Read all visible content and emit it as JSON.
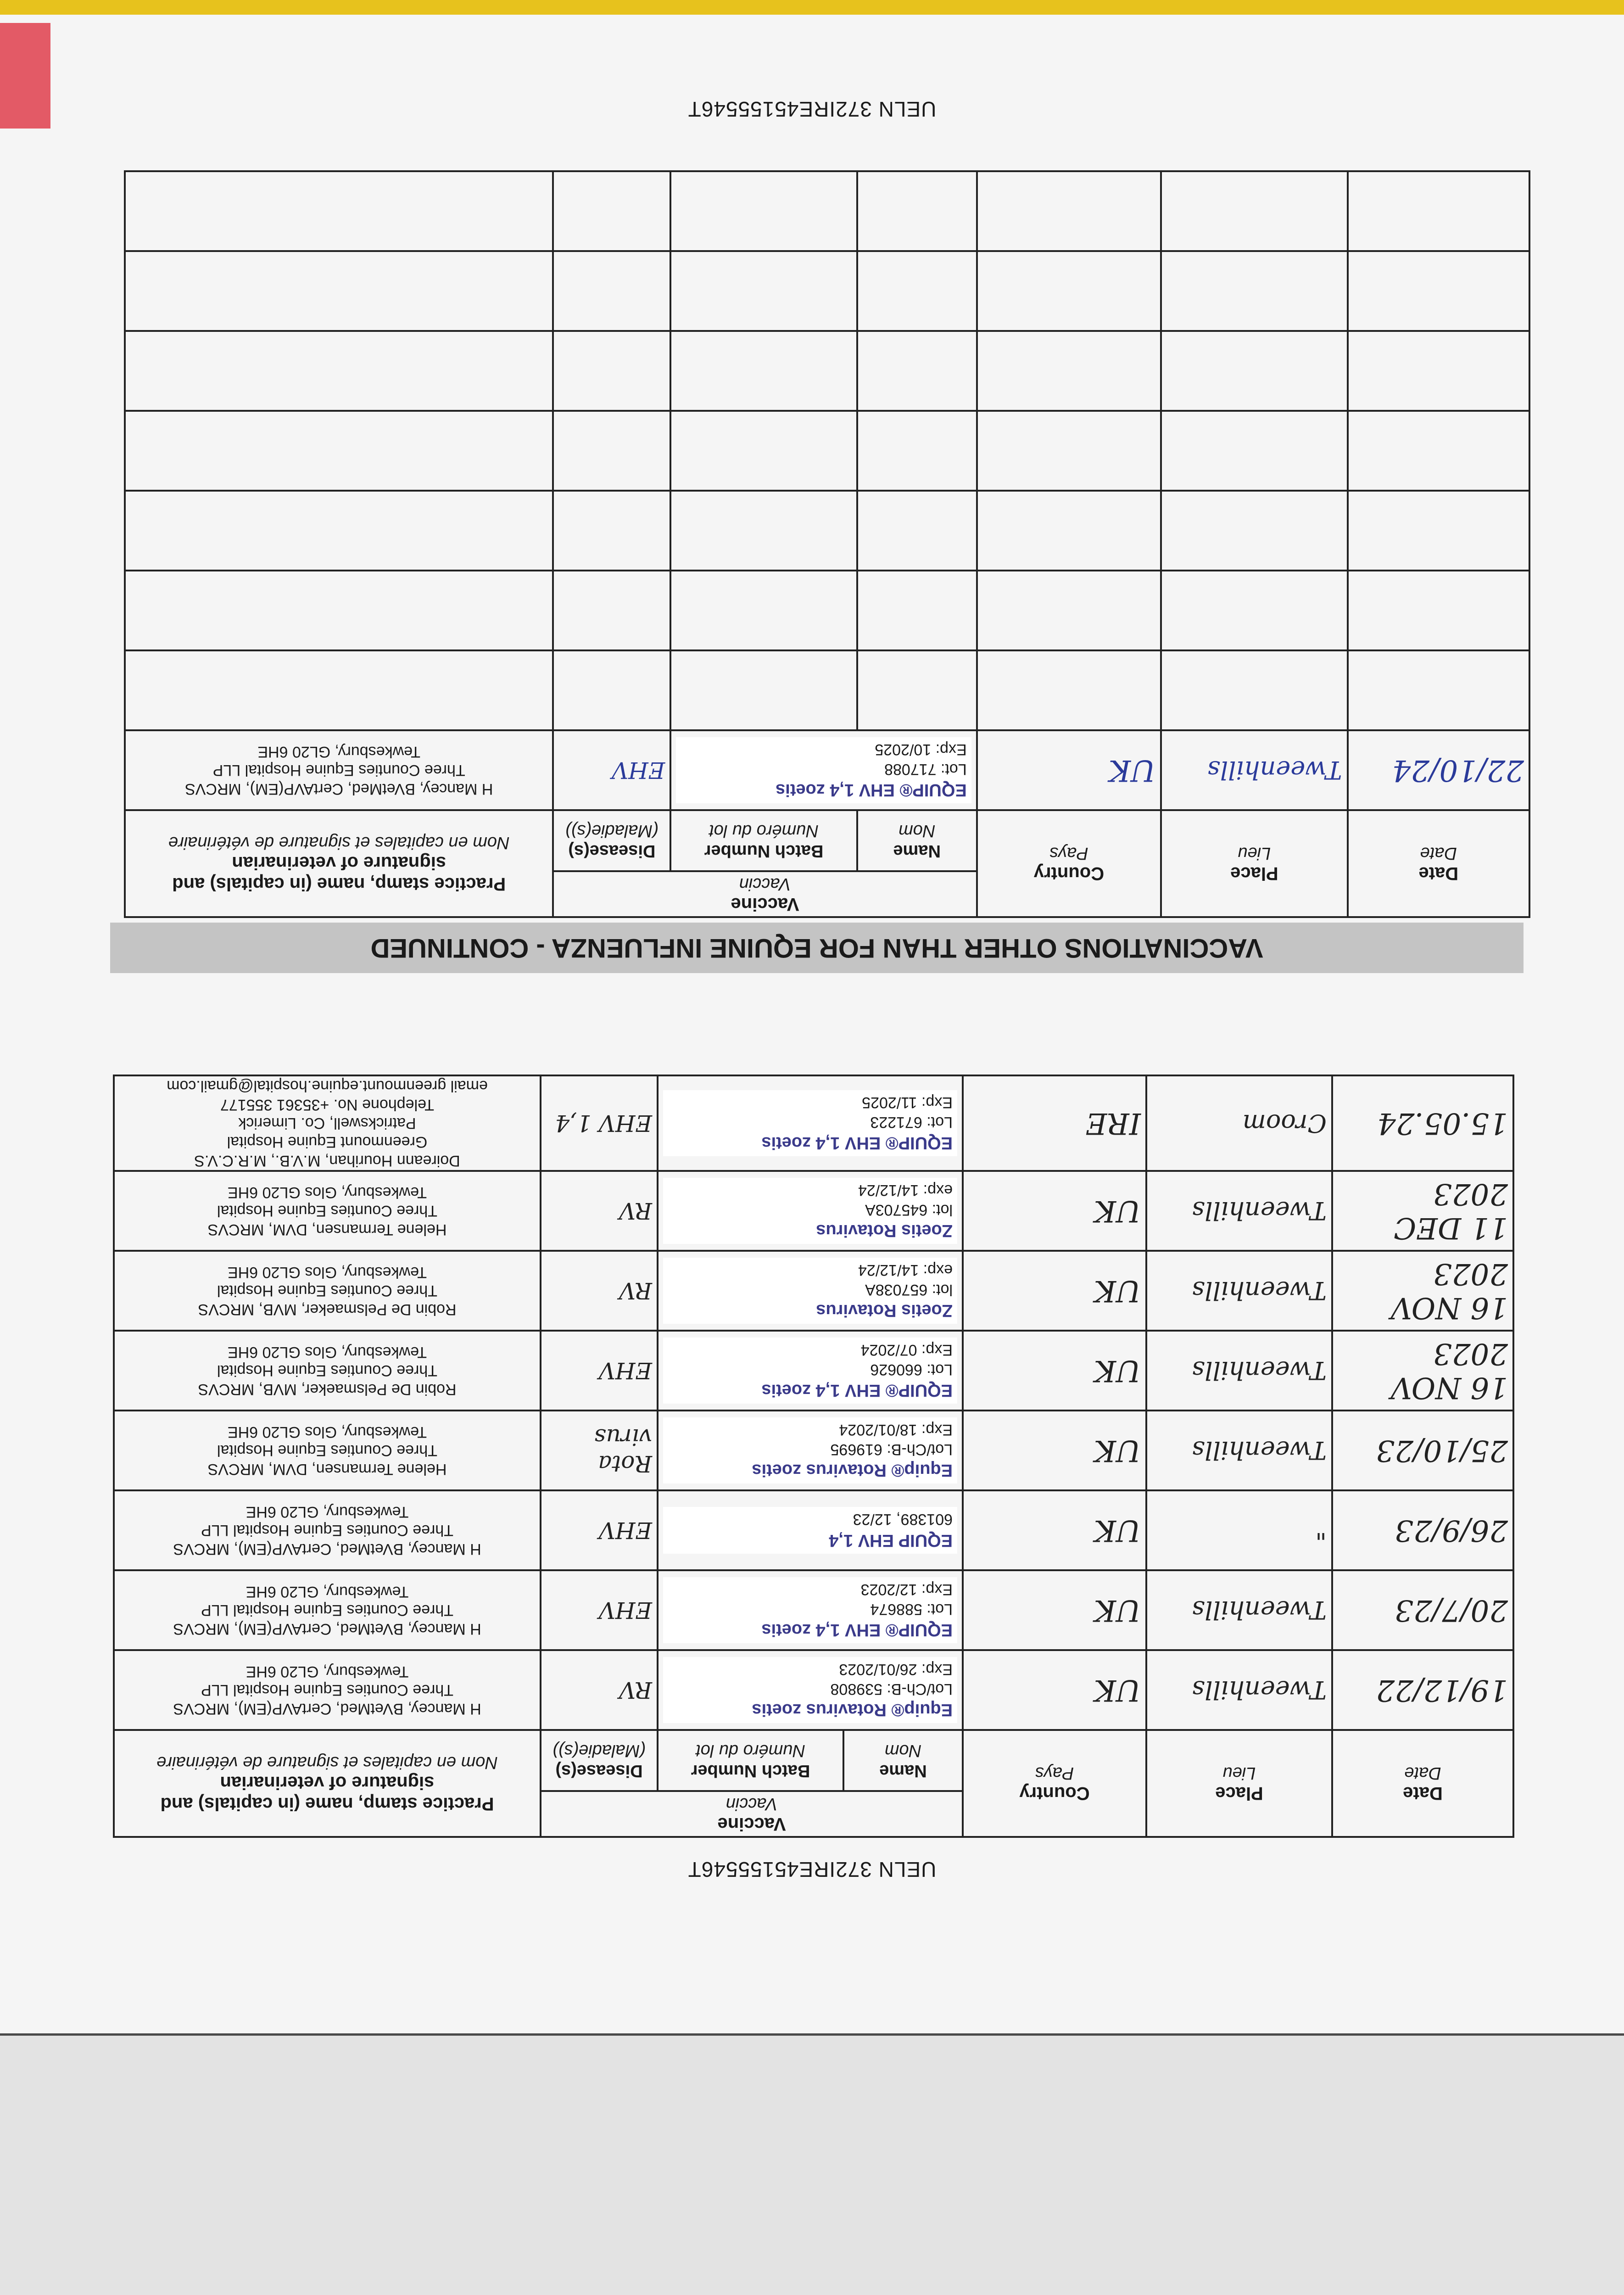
{
  "document": {
    "ueln": "UELN 372IRE45155546T",
    "section_title": "VACCINATIONS OTHER THAN FOR EQUINE INFLUENZA - CONTINUED"
  },
  "headers": {
    "date": "Date",
    "date_fr": "Date",
    "place": "Place",
    "place_fr": "Lieu",
    "country": "Country",
    "country_fr": "Pays",
    "vaccine": "Vaccine",
    "vaccine_fr": "Vaccin",
    "name": "Name",
    "name_fr": "Nom",
    "batch": "Batch Number",
    "batch_fr": "Numéro du lot",
    "diseases": "Disease(s)",
    "diseases_fr": "(Maladie(s))",
    "stamp": "Practice stamp, name (in capitals) and signature of veterinarian",
    "stamp_fr": "Nom en capitales et signature de vétérinaire"
  },
  "table_first": [
    {
      "date": "19/12/22",
      "place": "Tweenhills",
      "country": "UK",
      "vaccine": "Equip® Rotavirus zoetis",
      "batch": [
        "Lot/Ch-B: 539808",
        "Exp: 26/01/2023"
      ],
      "diseases": "RV",
      "stamp": [
        "H Mancey, BVetMed, CertAVP(EM), MRCVS",
        "Three Counties Equine Hospital LLP",
        "Tewkesbury, GL20 6HE"
      ]
    },
    {
      "date": "20/7/23",
      "place": "Tweenhills",
      "country": "UK",
      "vaccine": "EQUIP® EHV 1,4 zoetis",
      "batch": [
        "Lot: 588674",
        "Exp: 12/2023"
      ],
      "diseases": "EHV",
      "stamp": [
        "H Mancey, BVetMed, CertAVP(EM), MRCVS",
        "Three Counties Equine Hospital LLP",
        "Tewkesbury, GL20 6HE"
      ]
    },
    {
      "date": "26/9/23",
      "place": "\"",
      "country": "UK",
      "vaccine": "EQUIP EHV 1,4",
      "batch": [
        "601389, 12/23"
      ],
      "diseases": "EHV",
      "stamp": [
        "H Mancey, BVetMed, CertAVP(EM), MRCVS",
        "Three Counties Equine Hospital LLP",
        "Tewkesbury, GL20 6HE"
      ]
    },
    {
      "date": "25/10/23",
      "place": "Tweenhills",
      "country": "UK",
      "vaccine": "Equip® Rotavirus zoetis",
      "batch": [
        "Lot/Ch-B: 619695",
        "Exp: 18/01/2024"
      ],
      "diseases": "Rota virus",
      "stamp": [
        "Helene Termansen, DVM, MRCVS",
        "Three Counties Equine Hospital",
        "Tewkesbury, Glos GL20 6HE"
      ]
    },
    {
      "date": "16 NOV 2023",
      "place": "Tweenhills",
      "country": "UK",
      "vaccine": "EQUIP® EHV 1,4 zoetis",
      "batch": [
        "Lot: 660626",
        "Exp: 07/2024"
      ],
      "diseases": "EHV",
      "stamp": [
        "Robin De Pelsmaeker, MVB, MRCVS",
        "Three Counties Equine Hospital",
        "Tewkesbury, Glos GL20 6HE"
      ]
    },
    {
      "date": "16 NOV 2023",
      "place": "Tweenhills",
      "country": "UK",
      "vaccine": "Zoetis Rotavirus",
      "batch": [
        "lot: 657038A",
        "exp: 14/12/24"
      ],
      "diseases": "RV",
      "stamp": [
        "Robin De Pelsmaeker, MVB, MRCVS",
        "Three Counties Equine Hospital",
        "Tewkesbury, Glos GL20 6HE"
      ]
    },
    {
      "date": "11 DEC 2023",
      "place": "Tweenhills",
      "country": "UK",
      "vaccine": "Zoetis Rotavirus",
      "batch": [
        "lot: 645703A",
        "exp: 14/12/24"
      ],
      "diseases": "RV",
      "stamp": [
        "Helene Termansen, DVM, MRCVS",
        "Three Counties Equine Hospital",
        "Tewkesbury, Glos GL20 6HE"
      ]
    },
    {
      "date": "15.05.24",
      "place": "Croom",
      "country": "IRE",
      "vaccine": "EQUIP® EHV 1,4 zoetis",
      "batch": [
        "Lot: 671223",
        "Exp: 11/2025"
      ],
      "diseases": "EHV 1,4",
      "stamp": [
        "Doireann Hourihan, M.V.B., M.R.C.V.S",
        "Greenmount Equine Hospital",
        "Patrickswell, Co. Limerick",
        "Telephone No. +35361 355177",
        "email greenmount.equine.hospital@gmail.com"
      ]
    }
  ],
  "table_second": [
    {
      "date": "22/10/24",
      "place": "Tweenhills",
      "country": "UK",
      "vaccine": "EQUIP® EHV 1,4 zoetis",
      "batch": [
        "Lot: 717088",
        "Exp: 10/2025"
      ],
      "diseases": "EHV",
      "stamp": [
        "H Mancey, BVetMed, CertAVP(EM), MRCVS",
        "Three Counties Equine Hospital LLP",
        "Tewkesbury, GL20 6HE"
      ]
    },
    {},
    {},
    {},
    {},
    {},
    {},
    {}
  ],
  "colors": {
    "ink_blue": "#2a3a9a",
    "tab_red": "#e35a66",
    "tab_yellow": "#e7c21d",
    "banner_gray": "#c4c4c4"
  }
}
